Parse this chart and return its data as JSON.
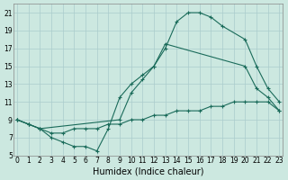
{
  "xlabel": "Humidex (Indice chaleur)",
  "bg_color": "#cce8e0",
  "grid_color": "#aacccc",
  "line_color": "#1a6b5a",
  "line1_x": [
    0,
    1,
    2,
    9,
    10,
    11,
    12,
    13,
    14,
    15,
    16,
    17,
    18,
    20,
    21,
    22,
    23
  ],
  "line1_y": [
    9,
    8.5,
    8,
    9,
    12,
    13.5,
    15,
    17,
    20,
    21,
    21,
    20.5,
    19.5,
    18,
    15,
    12.5,
    11
  ],
  "line2_x": [
    0,
    1,
    2,
    3,
    4,
    5,
    6,
    7,
    8,
    9,
    10,
    11,
    12,
    13,
    14,
    15,
    16,
    17,
    18,
    19,
    20,
    21,
    22,
    23
  ],
  "line2_y": [
    9,
    8.5,
    8,
    7.5,
    7.5,
    8,
    8,
    8,
    8.5,
    8.5,
    9,
    9,
    9.5,
    9.5,
    10,
    10,
    10,
    10.5,
    10.5,
    11,
    11,
    11,
    11,
    10
  ],
  "line3_x": [
    0,
    1,
    2,
    3,
    4,
    5,
    6,
    7,
    8,
    9,
    10,
    11,
    12,
    13,
    20,
    21,
    22,
    23
  ],
  "line3_y": [
    9,
    8.5,
    8,
    7,
    6.5,
    6,
    6,
    5.5,
    8,
    11.5,
    13,
    14,
    15,
    17.5,
    15,
    12.5,
    11.5,
    10
  ],
  "xlim": [
    -0.3,
    23.3
  ],
  "ylim": [
    5,
    22
  ],
  "xticks": [
    0,
    1,
    2,
    3,
    4,
    5,
    6,
    7,
    8,
    9,
    10,
    11,
    12,
    13,
    14,
    15,
    16,
    17,
    18,
    19,
    20,
    21,
    22,
    23
  ],
  "yticks": [
    5,
    7,
    9,
    11,
    13,
    15,
    17,
    19,
    21
  ],
  "xtick_labels": [
    "0",
    "1",
    "2",
    "3",
    "4",
    "5",
    "6",
    "7",
    "8",
    "9",
    "10",
    "11",
    "12",
    "13",
    "14",
    "15",
    "16",
    "17",
    "18",
    "19",
    "20",
    "21",
    "22",
    "23"
  ],
  "ytick_labels": [
    "5",
    "7",
    "9",
    "11",
    "13",
    "15",
    "17",
    "19",
    "21"
  ],
  "tick_fontsize": 5.5,
  "xlabel_fontsize": 7,
  "marker": "+"
}
